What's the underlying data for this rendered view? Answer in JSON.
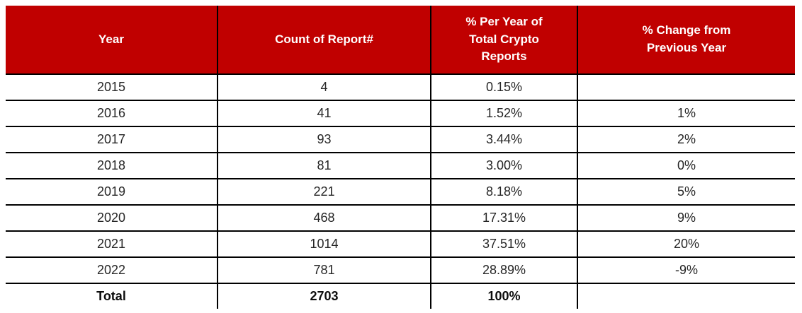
{
  "chart_data": {
    "type": "table",
    "columns": [
      "Year",
      "Count of Report#",
      "% Per Year of Total Crypto Reports",
      "% Change from Previous Year"
    ],
    "rows": [
      [
        "2015",
        "4",
        "0.15%",
        ""
      ],
      [
        "2016",
        "41",
        "1.52%",
        "1%"
      ],
      [
        "2017",
        "93",
        "3.44%",
        "2%"
      ],
      [
        "2018",
        "81",
        "3.00%",
        "0%"
      ],
      [
        "2019",
        "221",
        "8.18%",
        "5%"
      ],
      [
        "2020",
        "468",
        "17.31%",
        "9%"
      ],
      [
        "2021",
        "1014",
        "37.51%",
        "20%"
      ],
      [
        "2022",
        "781",
        "28.89%",
        "-9%"
      ]
    ],
    "total_row": [
      "Total",
      "2703",
      "100%",
      ""
    ]
  },
  "colors": {
    "header_background": "#C00000",
    "header_text": "#FFFFFF",
    "body_text": "#262626",
    "grid_border": "#000000"
  }
}
